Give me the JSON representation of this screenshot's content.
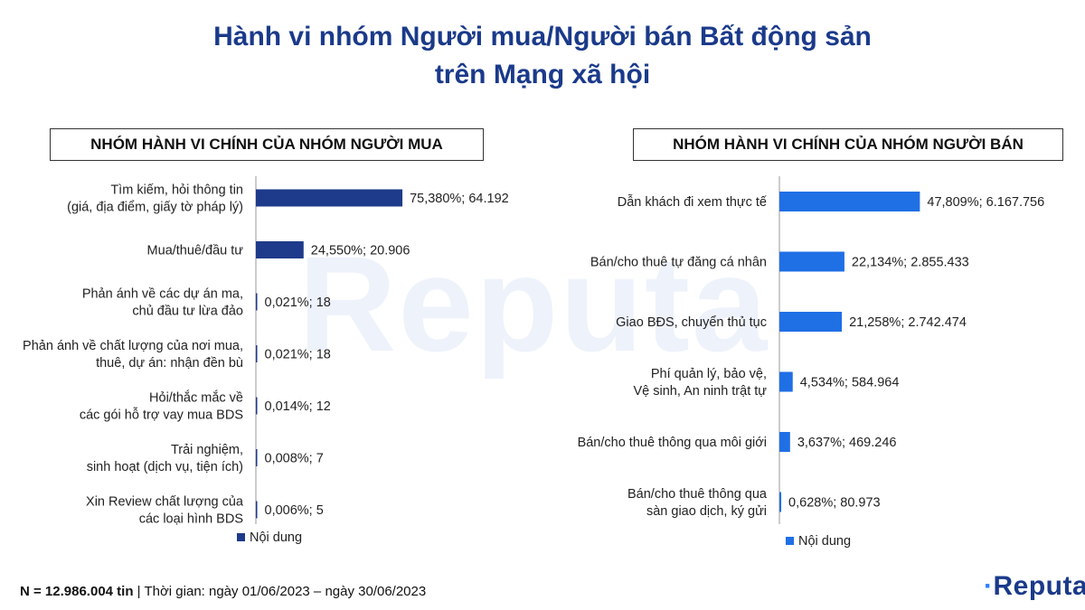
{
  "title_line1": "Hành vi nhóm Người mua/Người bán Bất động sản",
  "title_line2": "trên Mạng xã hội",
  "watermark": "Reputa",
  "footer": {
    "n_label": "N = 12.986.004 tin",
    "period": "| Thời gian: ngày 01/06/2023 – ngày 30/06/2023"
  },
  "logo": {
    "dot": "·",
    "text": "Reputa"
  },
  "chart_data": [
    {
      "type": "bar",
      "orientation": "horizontal",
      "title": "NHÓM HÀNH VI CHÍNH CỦA NHÓM NGƯỜI MUA",
      "legend": "Nội dung",
      "legend_position": "bottom",
      "color": "#1e3a8a",
      "xlim": [
        0,
        100
      ],
      "categories": [
        "Tìm kiếm, hỏi thông tin\n(giá, địa điểm, giấy tờ pháp lý)",
        "Mua/thuê/đầu tư",
        "Phản ánh về các dự án ma,\nchủ đầu tư lừa đảo",
        "Phản ánh về chất lượng của nơi mua,\nthuê, dự án: nhận đền bù",
        "Hỏi/thắc mắc về\ncác gói hỗ trợ vay mua BDS",
        "Trải nghiệm,\nsinh hoạt (dịch vụ, tiện ích)",
        "Xin Review chất lượng của\ncác loại hình BDS"
      ],
      "values": [
        75.38,
        24.55,
        0.021,
        0.021,
        0.014,
        0.008,
        0.006
      ],
      "labels": [
        "75,380%;  64.192",
        "24,550%;  20.906",
        "0,021%;  18",
        "0,021%;  18",
        "0,014%;  12",
        "0,008%;  7",
        "0,006%;  5"
      ]
    },
    {
      "type": "bar",
      "orientation": "horizontal",
      "title": "NHÓM HÀNH VI CHÍNH CỦA NHÓM NGƯỜI BÁN",
      "legend": "Nội dung",
      "legend_position": "bottom",
      "color": "#1f6fe5",
      "xlim": [
        0,
        100
      ],
      "categories": [
        "Dẫn khách đi xem thực tế",
        "Bán/cho thuê tự đăng cá nhân",
        "Giao BĐS, chuyển thủ tục",
        "Phí quản lý, bảo vệ,\nVệ sinh, An ninh trật tự",
        "Bán/cho thuê thông qua môi giới",
        "Bán/cho thuê thông qua\nsàn giao dịch, ký gửi"
      ],
      "values": [
        47.809,
        22.134,
        21.258,
        4.534,
        3.637,
        0.628
      ],
      "labels": [
        "47,809%;  6.167.756",
        "22,134%;  2.855.433",
        "21,258%;  2.742.474",
        "4,534%;  584.964",
        "3,637%;  469.246",
        "0,628%;  80.973"
      ]
    }
  ]
}
